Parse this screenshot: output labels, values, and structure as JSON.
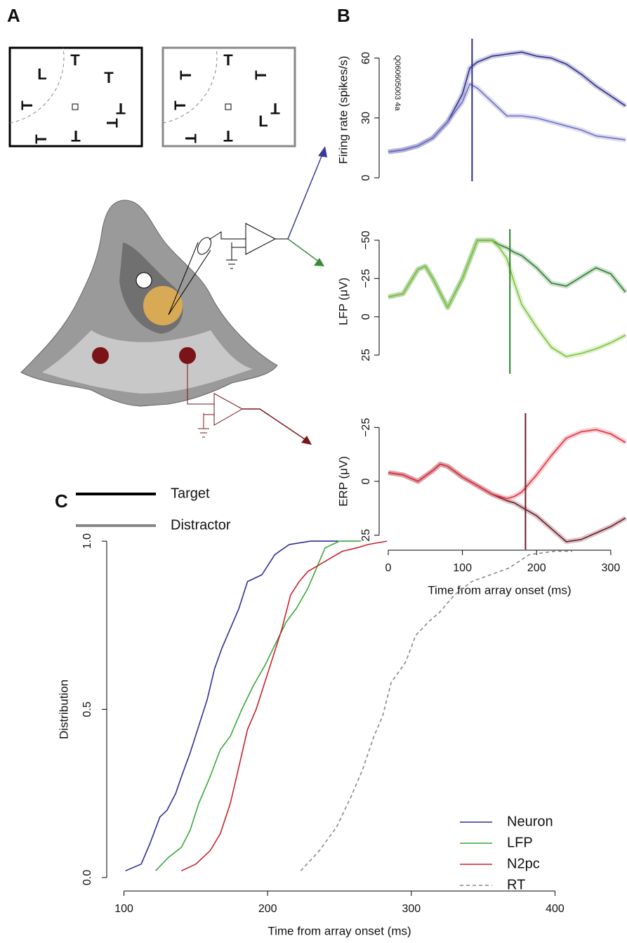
{
  "panel_labels": [
    "A",
    "B",
    "C"
  ],
  "panel_a": {
    "arrays": [
      {
        "items": [
          "T",
          "L",
          "T",
          "T",
          "T",
          "T",
          "T",
          "T"
        ]
      },
      {
        "items": [
          "T",
          "T",
          "T",
          "T",
          "T",
          "T",
          "L",
          "T"
        ]
      }
    ],
    "legend": [
      "Target",
      "Distractor"
    ]
  },
  "chart_data": [
    {
      "type": "line",
      "ylabel": "Firing rate (spikes/s)",
      "annotation": "Q060605003 4a",
      "x": [
        0,
        20,
        40,
        60,
        80,
        100,
        110,
        120,
        140,
        160,
        180,
        200,
        220,
        240,
        260,
        280,
        300,
        320
      ],
      "series": [
        {
          "color": "#2e2e8a",
          "values": [
            13,
            14,
            16,
            20,
            28,
            42,
            55,
            58,
            61,
            62,
            63,
            61,
            60,
            57,
            52,
            46,
            41,
            36
          ]
        },
        {
          "color": "#6f6fc4",
          "values": [
            13,
            14,
            16,
            20,
            28,
            38,
            47,
            45,
            38,
            31,
            31,
            30,
            28,
            26,
            24,
            21,
            20,
            19
          ]
        }
      ],
      "marker_x": 113,
      "xlim": [
        0,
        320
      ],
      "ylim": [
        0,
        68
      ],
      "yticks": [
        0,
        30,
        60
      ]
    },
    {
      "type": "line",
      "ylabel": "LFP (μV)",
      "x": [
        0,
        20,
        40,
        50,
        60,
        80,
        100,
        120,
        140,
        150,
        160,
        170,
        180,
        200,
        220,
        240,
        260,
        280,
        300,
        320
      ],
      "series": [
        {
          "color": "#2f7f2f",
          "values": [
            -13,
            -15,
            -31,
            -33,
            -25,
            -6,
            -25,
            -50,
            -50,
            -47,
            -45,
            -42,
            -40,
            -32,
            -22,
            -20,
            -26,
            -32,
            -28,
            -16
          ]
        },
        {
          "color": "#7cc23a",
          "values": [
            -13,
            -15,
            -31,
            -33,
            -25,
            -6,
            -25,
            -50,
            -50,
            -45,
            -38,
            -22,
            -8,
            7,
            20,
            26,
            24,
            21,
            17,
            12
          ]
        }
      ],
      "marker_x": 164,
      "xlim": [
        0,
        320
      ],
      "ylim": [
        35,
        -55
      ],
      "yticks": [
        {
          "value": -50,
          "label": "−50"
        },
        {
          "value": -25,
          "label": "−25"
        },
        0,
        25
      ]
    },
    {
      "type": "line",
      "ylabel": "ERP (μV)",
      "xlabel": "Time from array onset (ms)",
      "x": [
        0,
        20,
        40,
        60,
        70,
        80,
        100,
        120,
        140,
        160,
        170,
        180,
        200,
        220,
        240,
        260,
        280,
        300,
        320
      ],
      "series": [
        {
          "color": "#6e1a28",
          "values": [
            -4,
            -3,
            0,
            -5,
            -8,
            -7,
            -2,
            2,
            6,
            9,
            10,
            12,
            16,
            22,
            28,
            27,
            24,
            21,
            17
          ]
        },
        {
          "color": "#e0303f",
          "values": [
            -4,
            -3,
            0,
            -5,
            -8,
            -7,
            -2,
            2,
            6,
            8,
            7,
            5,
            -3,
            -12,
            -20,
            -23,
            -24,
            -22,
            -18
          ]
        }
      ],
      "marker_x": 185,
      "xlim": [
        0,
        320
      ],
      "ylim": [
        30,
        -30
      ],
      "xticks": [
        0,
        100,
        200,
        300
      ],
      "yticks": [
        {
          "value": -25,
          "label": "−25"
        },
        0,
        25
      ]
    },
    {
      "type": "line",
      "ylabel": "Distribution",
      "xlabel": "Time from array onset (ms)",
      "series": [
        {
          "name": "Neuron",
          "color": "#2e2e9a",
          "line_style": "solid",
          "x": [
            101,
            112,
            118,
            125,
            130,
            136,
            140,
            146,
            152,
            158,
            163,
            168,
            174,
            180,
            186,
            196,
            205,
            215,
            230,
            249
          ],
          "values": [
            0.02,
            0.04,
            0.1,
            0.18,
            0.2,
            0.25,
            0.3,
            0.37,
            0.45,
            0.53,
            0.62,
            0.68,
            0.74,
            0.8,
            0.88,
            0.9,
            0.96,
            0.99,
            1.0,
            1.0
          ]
        },
        {
          "name": "LFP",
          "color": "#3aa83a",
          "line_style": "solid",
          "x": [
            122,
            131,
            140,
            146,
            152,
            160,
            167,
            174,
            182,
            190,
            198,
            206,
            213,
            220,
            228,
            234,
            240,
            250,
            265
          ],
          "values": [
            0.02,
            0.06,
            0.09,
            0.14,
            0.22,
            0.3,
            0.38,
            0.42,
            0.5,
            0.57,
            0.63,
            0.7,
            0.76,
            0.8,
            0.86,
            0.92,
            0.98,
            1.0,
            1.0
          ]
        },
        {
          "name": "N2pc",
          "color": "#c8202a",
          "line_style": "solid",
          "x": [
            140,
            150,
            160,
            167,
            174,
            180,
            186,
            192,
            198,
            204,
            210,
            216,
            222,
            228,
            236,
            244,
            252,
            262,
            270,
            283
          ],
          "values": [
            0.02,
            0.04,
            0.08,
            0.13,
            0.22,
            0.33,
            0.44,
            0.5,
            0.58,
            0.66,
            0.74,
            0.84,
            0.88,
            0.91,
            0.93,
            0.95,
            0.97,
            0.98,
            0.99,
            1.0
          ]
        },
        {
          "name": "RT",
          "color": "#888888",
          "line_style": "dashed",
          "x": [
            223,
            236,
            248,
            258,
            266,
            274,
            280,
            286,
            296,
            303,
            312,
            320,
            330,
            342,
            355,
            368,
            382,
            400,
            412
          ],
          "values": [
            0.02,
            0.08,
            0.15,
            0.24,
            0.32,
            0.42,
            0.48,
            0.58,
            0.64,
            0.72,
            0.76,
            0.79,
            0.84,
            0.88,
            0.9,
            0.92,
            0.96,
            0.97,
            0.97
          ]
        }
      ],
      "xlim": [
        88,
        412
      ],
      "ylim": [
        -0.04,
        1.04
      ],
      "xticks": [
        100,
        200,
        300,
        400
      ],
      "yticks": [
        {
          "value": 0,
          "label": "0.0"
        },
        0.5,
        {
          "value": 1,
          "label": "1.0"
        }
      ],
      "legend": "lower-right"
    }
  ]
}
